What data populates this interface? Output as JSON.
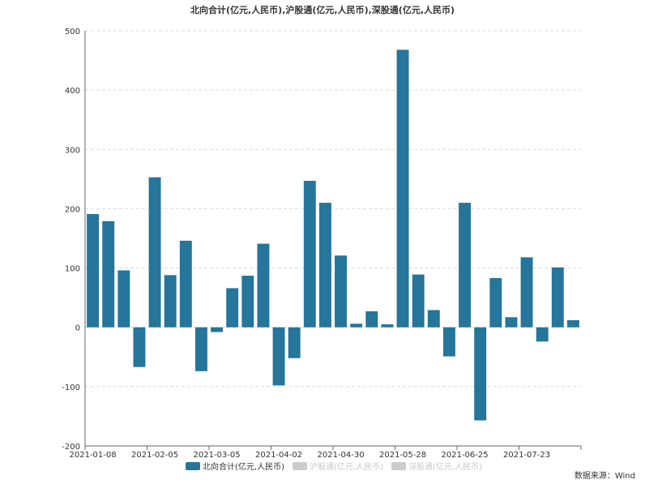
{
  "chart_data": {
    "type": "bar",
    "title": "北向合计(亿元,人民币),沪股通(亿元,人民币),深股通(亿元,人民币)",
    "ylim": [
      -200,
      500
    ],
    "yticks": [
      "500",
      "400",
      "300",
      "200",
      "100",
      "0",
      "-100",
      "-200"
    ],
    "ytick_values": [
      500,
      400,
      300,
      200,
      100,
      0,
      -100,
      -200
    ],
    "xtick_labels": [
      "2021-01-08",
      "2021-02-05",
      "2021-03-05",
      "2021-04-02",
      "2021-04-30",
      "2021-05-28",
      "2021-06-25",
      "2021-07-23"
    ],
    "grid": true,
    "legend_position": "bottom",
    "series": [
      {
        "name": "北向合计(亿元,人民币)",
        "color": "#26759b",
        "active": true,
        "values": [
          191,
          179,
          96,
          -67,
          253,
          88,
          146,
          -74,
          -8,
          66,
          87,
          141,
          -98,
          -52,
          247,
          210,
          121,
          6,
          27,
          5,
          468,
          89,
          29,
          -49,
          210,
          -157,
          83,
          17,
          118,
          -24,
          101,
          12
        ]
      },
      {
        "name": "沪股通(亿元,人民币)",
        "color": "#cccccc",
        "active": false,
        "values": []
      },
      {
        "name": "深股通(亿元,人民币)",
        "color": "#cccccc",
        "active": false,
        "values": []
      }
    ]
  },
  "source_note": "数据来源：Wind"
}
